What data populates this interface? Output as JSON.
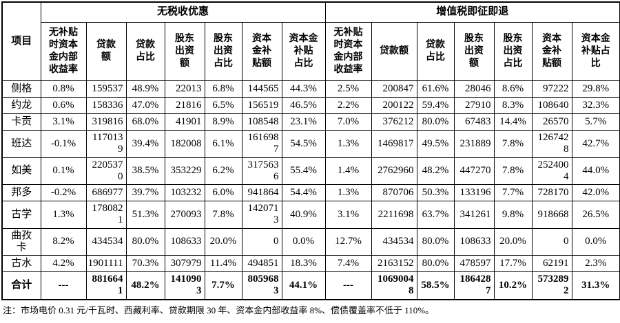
{
  "table": {
    "corner_label": "项目",
    "groups": [
      {
        "label": "无税收优惠"
      },
      {
        "label": "增值税即征即退"
      }
    ],
    "columns_left": [
      "无补贴\n时资本\n金内部\n收益率",
      "贷款\n额",
      "贷款\n占比",
      "股东\n出资\n额",
      "股东\n出资\n占比",
      "资本\n金补\n贴额",
      "资本金\n补贴\n占比"
    ],
    "columns_right": [
      "无补贴\n时资本\n金内部\n收益率",
      "贷款额",
      "贷款\n占比",
      "股东\n出资\n额",
      "股东\n出资\n占比",
      "资本\n金补\n贴额",
      "资本金\n补贴占\n比"
    ],
    "rows": [
      {
        "name": "侧格",
        "bold": false,
        "left": [
          "0.8%",
          "159537",
          "48.9%",
          "22013",
          "6.8%",
          "144565",
          "44.3%"
        ],
        "right": [
          "2.5%",
          "200847",
          "61.6%",
          "28046",
          "8.6%",
          "97222",
          "29.8%"
        ]
      },
      {
        "name": "约龙",
        "bold": false,
        "left": [
          "0.6%",
          "158336",
          "47.0%",
          "21816",
          "6.5%",
          "156519",
          "46.5%"
        ],
        "right": [
          "2.2%",
          "200122",
          "59.4%",
          "27910",
          "8.3%",
          "108640",
          "32.3%"
        ]
      },
      {
        "name": "卡贡",
        "bold": false,
        "left": [
          "3.1%",
          "319816",
          "68.0%",
          "41901",
          "8.9%",
          "108548",
          "23.1%"
        ],
        "right": [
          "7.0%",
          "376212",
          "80.0%",
          "67483",
          "14.4%",
          "26570",
          "5.7%"
        ]
      },
      {
        "name": "班达",
        "bold": false,
        "left": [
          "-0.1%",
          "1170139",
          "39.4%",
          "182008",
          "6.1%",
          "1616987",
          "54.5%"
        ],
        "right": [
          "1.3%",
          "1469817",
          "49.5%",
          "231889",
          "7.8%",
          "1267428",
          "42.7%"
        ]
      },
      {
        "name": "如美",
        "bold": false,
        "left": [
          "0.1%",
          "2205370",
          "38.5%",
          "353229",
          "6.2%",
          "3175636",
          "55.4%"
        ],
        "right": [
          "1.4%",
          "2762960",
          "48.2%",
          "447270",
          "7.8%",
          "2524004",
          "44.0%"
        ]
      },
      {
        "name": "邦多",
        "bold": false,
        "left": [
          "-0.2%",
          "686977",
          "39.7%",
          "103232",
          "6.0%",
          "941864",
          "54.4%"
        ],
        "right": [
          "1.3%",
          "870706",
          "50.3%",
          "133196",
          "7.7%",
          "728170",
          "42.0%"
        ]
      },
      {
        "name": "古学",
        "bold": false,
        "left": [
          "1.3%",
          "1780821",
          "51.3%",
          "270093",
          "7.8%",
          "1420713",
          "40.9%"
        ],
        "right": [
          "3.1%",
          "2211698",
          "63.7%",
          "341261",
          "9.8%",
          "918668",
          "26.5%"
        ]
      },
      {
        "name": "曲孜卡",
        "bold": false,
        "left": [
          "8.2%",
          "434534",
          "80.0%",
          "108633",
          "20.0%",
          "0",
          "0.0%"
        ],
        "right": [
          "12.7%",
          "434534",
          "80.0%",
          "108633",
          "20.0%",
          "0",
          "0.0%"
        ]
      },
      {
        "name": "古水",
        "bold": false,
        "left": [
          "4.2%",
          "1901111",
          "70.3%",
          "307979",
          "11.4%",
          "494851",
          "18.3%"
        ],
        "right": [
          "7.4%",
          "2163152",
          "80.0%",
          "478597",
          "17.7%",
          "62191",
          "2.3%"
        ]
      },
      {
        "name": "合计",
        "bold": true,
        "left": [
          "---",
          "8816641",
          "48.2%",
          "1410903",
          "7.7%",
          "8059683",
          "44.1%"
        ],
        "right": [
          "---",
          "10690048",
          "58.5%",
          "1864287",
          "10.2%",
          "5732892",
          "31.3%"
        ]
      }
    ]
  },
  "footnote": "注：市场电价 0.31 元/千瓦时、西藏利率、贷款期限 30 年、资本金内部收益率 8%、偿债覆盖率不低于 110%。"
}
